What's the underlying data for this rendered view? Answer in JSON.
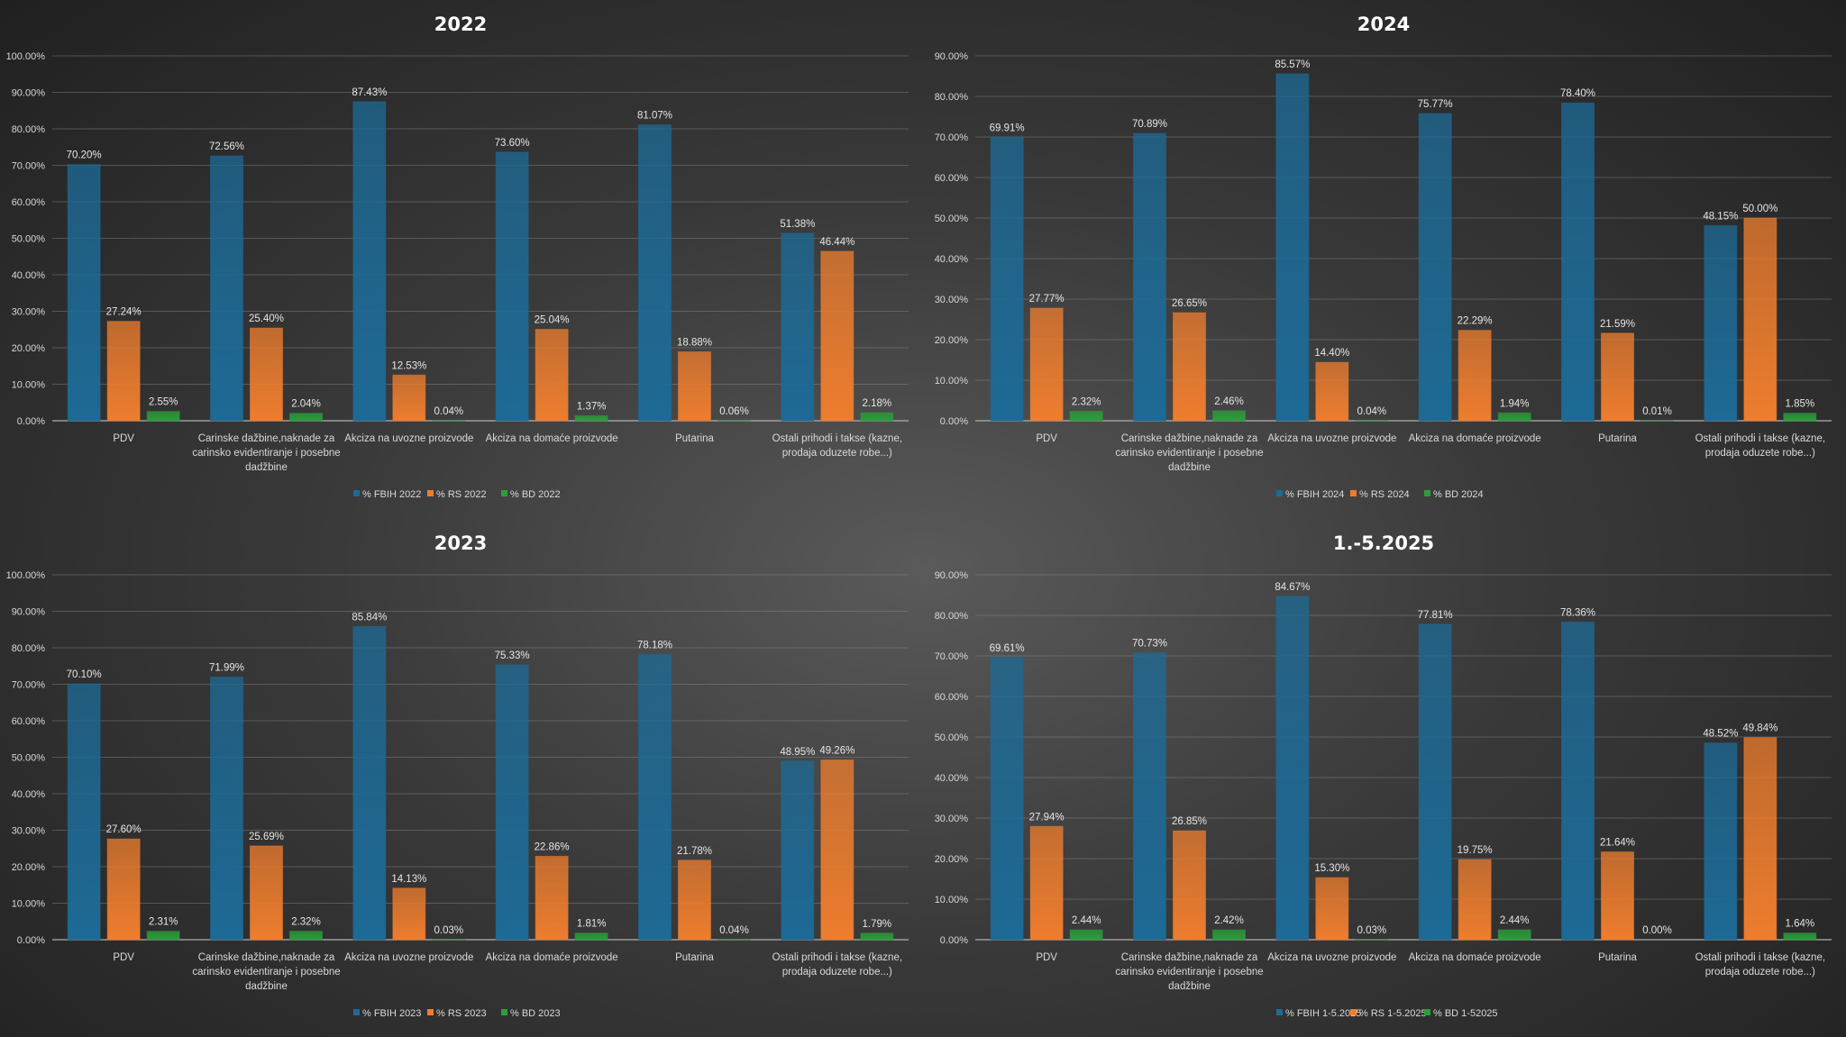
{
  "chart_data": [
    {
      "type": "bar",
      "title": "2022",
      "categories": [
        "PDV",
        "Carinske dažbine,naknade za|carinsko evidentiranje i posebne|dadžbine",
        "Akciza na uvozne proizvode",
        "Akciza na domaće proizvode",
        "Putarina",
        "Ostali prihodi i takse (kazne,|prodaja oduzete robe...)"
      ],
      "series": [
        {
          "name": "% FBIH 2022",
          "color": "#1d6a96",
          "values": [
            70.2,
            72.56,
            87.43,
            73.6,
            81.07,
            51.38
          ]
        },
        {
          "name": "% RS 2022",
          "color": "#ee7d2e",
          "values": [
            27.24,
            25.4,
            12.53,
            25.04,
            18.88,
            46.44
          ]
        },
        {
          "name": "% BD 2022",
          "color": "#2b9e3a",
          "values": [
            2.55,
            2.04,
            0.04,
            1.37,
            0.06,
            2.18
          ]
        }
      ],
      "ylim": [
        0,
        100
      ],
      "ytick_step": 10,
      "legend": "bottom",
      "grid": true
    },
    {
      "type": "bar",
      "title": "2024",
      "categories": [
        "PDV",
        "Carinske dažbine,naknade za|carinsko evidentiranje i posebne|dadžbine",
        "Akciza na uvozne proizvode",
        "Akciza na domaće proizvode",
        "Putarina",
        "Ostali prihodi i takse (kazne,|prodaja oduzete robe...)"
      ],
      "series": [
        {
          "name": "% FBIH 2024",
          "color": "#1d6a96",
          "values": [
            69.91,
            70.89,
            85.57,
            75.77,
            78.4,
            48.15
          ]
        },
        {
          "name": "% RS 2024",
          "color": "#ee7d2e",
          "values": [
            27.77,
            26.65,
            14.4,
            22.29,
            21.59,
            50.0
          ]
        },
        {
          "name": "% BD 2024",
          "color": "#2b9e3a",
          "values": [
            2.32,
            2.46,
            0.04,
            1.94,
            0.01,
            1.85
          ]
        }
      ],
      "ylim": [
        0,
        90
      ],
      "ytick_step": 10,
      "legend": "bottom",
      "grid": true
    },
    {
      "type": "bar",
      "title": "2023",
      "categories": [
        "PDV",
        "Carinske dažbine,naknade za|carinsko evidentiranje i posebne|dadžbine",
        "Akciza na uvozne proizvode",
        "Akciza na domaće proizvode",
        "Putarina",
        "Ostali prihodi i takse (kazne,|prodaja oduzete robe...)"
      ],
      "series": [
        {
          "name": "% FBIH 2023",
          "color": "#1d6a96",
          "values": [
            70.1,
            71.99,
            85.84,
            75.33,
            78.18,
            48.95
          ]
        },
        {
          "name": "% RS 2023",
          "color": "#ee7d2e",
          "values": [
            27.6,
            25.69,
            14.13,
            22.86,
            21.78,
            49.26
          ]
        },
        {
          "name": "% BD 2023",
          "color": "#2b9e3a",
          "values": [
            2.31,
            2.32,
            0.03,
            1.81,
            0.04,
            1.79
          ]
        }
      ],
      "ylim": [
        0,
        100
      ],
      "ytick_step": 10,
      "legend": "bottom",
      "grid": true
    },
    {
      "type": "bar",
      "title": "1.-5.2025",
      "categories": [
        "PDV",
        "Carinske dažbine,naknade za|carinsko evidentiranje i posebne|dadžbine",
        "Akciza na uvozne proizvode",
        "Akciza na domaće proizvode",
        "Putarina",
        "Ostali prihodi i takse (kazne,|prodaja oduzete robe...)"
      ],
      "series": [
        {
          "name": "% FBIH 1-5.2025",
          "color": "#1d6a96",
          "values": [
            69.61,
            70.73,
            84.67,
            77.81,
            78.36,
            48.52
          ]
        },
        {
          "name": "% RS 1-5.2025",
          "color": "#ee7d2e",
          "values": [
            27.94,
            26.85,
            15.3,
            19.75,
            21.64,
            49.84
          ]
        },
        {
          "name": "% BD 1-52025",
          "color": "#2b9e3a",
          "values": [
            2.44,
            2.42,
            0.03,
            2.44,
            0.0,
            1.64
          ]
        }
      ],
      "ylim": [
        0,
        90
      ],
      "ytick_step": 10,
      "legend": "bottom",
      "grid": true
    }
  ]
}
